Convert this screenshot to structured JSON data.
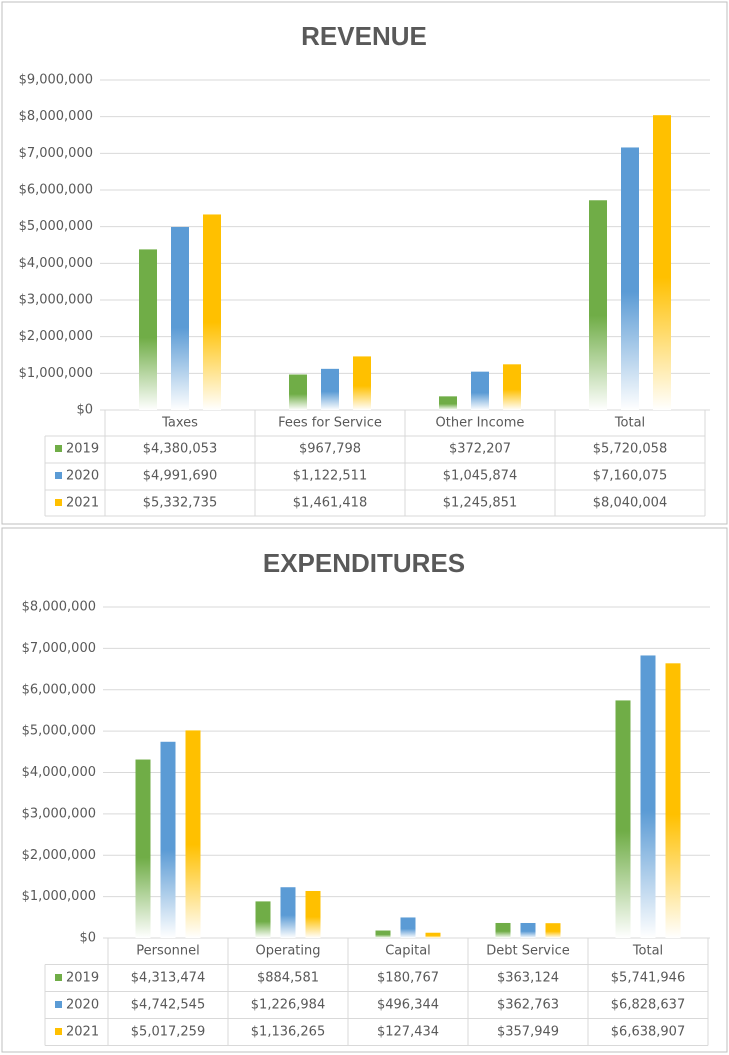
{
  "chart_data": [
    {
      "type": "bar",
      "title": "REVENUE",
      "categories": [
        "Taxes",
        "Fees for Service",
        "Other Income",
        "Total"
      ],
      "series": [
        {
          "name": "2019",
          "color": "#70ad47",
          "values": [
            4380053,
            967798,
            372207,
            5720058
          ],
          "value_labels": [
            "$4,380,053",
            "$967,798",
            "$372,207",
            "$5,720,058"
          ]
        },
        {
          "name": "2020",
          "color": "#5b9bd5",
          "values": [
            4991690,
            1122511,
            1045874,
            7160075
          ],
          "value_labels": [
            "$4,991,690",
            "$1,122,511",
            "$1,045,874",
            "$7,160,075"
          ]
        },
        {
          "name": "2021",
          "color": "#ffc000",
          "values": [
            5332735,
            1461418,
            1245851,
            8040004
          ],
          "value_labels": [
            "$5,332,735",
            "$1,461,418",
            "$1,245,851",
            "$8,040,004"
          ]
        }
      ],
      "ylim": [
        0,
        9000000
      ],
      "yticks": [
        {
          "value": 0,
          "label": "$0"
        },
        {
          "value": 1000000,
          "label": "$1,000,000"
        },
        {
          "value": 2000000,
          "label": "$2,000,000"
        },
        {
          "value": 3000000,
          "label": "$3,000,000"
        },
        {
          "value": 4000000,
          "label": "$4,000,000"
        },
        {
          "value": 5000000,
          "label": "$5,000,000"
        },
        {
          "value": 6000000,
          "label": "$6,000,000"
        },
        {
          "value": 7000000,
          "label": "$7,000,000"
        },
        {
          "value": 8000000,
          "label": "$8,000,000"
        },
        {
          "value": 9000000,
          "label": "$9,000,000"
        }
      ],
      "grid": true
    },
    {
      "type": "bar",
      "title": "EXPENDITURES",
      "categories": [
        "Personnel",
        "Operating",
        "Capital",
        "Debt Service",
        "Total"
      ],
      "series": [
        {
          "name": "2019",
          "color": "#70ad47",
          "values": [
            4313474,
            884581,
            180767,
            363124,
            5741946
          ],
          "value_labels": [
            "$4,313,474",
            "$884,581",
            "$180,767",
            "$363,124",
            "$5,741,946"
          ]
        },
        {
          "name": "2020",
          "color": "#5b9bd5",
          "values": [
            4742545,
            1226984,
            496344,
            362763,
            6828637
          ],
          "value_labels": [
            "$4,742,545",
            "$1,226,984",
            "$496,344",
            "$362,763",
            "$6,828,637"
          ]
        },
        {
          "name": "2021",
          "color": "#ffc000",
          "values": [
            5017259,
            1136265,
            127434,
            357949,
            6638907
          ],
          "value_labels": [
            "$5,017,259",
            "$1,136,265",
            "$127,434",
            "$357,949",
            "$6,638,907"
          ]
        }
      ],
      "ylim": [
        0,
        8000000
      ],
      "yticks": [
        {
          "value": 0,
          "label": "$0"
        },
        {
          "value": 1000000,
          "label": "$1,000,000"
        },
        {
          "value": 2000000,
          "label": "$2,000,000"
        },
        {
          "value": 3000000,
          "label": "$3,000,000"
        },
        {
          "value": 4000000,
          "label": "$4,000,000"
        },
        {
          "value": 5000000,
          "label": "$5,000,000"
        },
        {
          "value": 6000000,
          "label": "$6,000,000"
        },
        {
          "value": 7000000,
          "label": "$7,000,000"
        },
        {
          "value": 8000000,
          "label": "$8,000,000"
        }
      ],
      "grid": true
    }
  ]
}
